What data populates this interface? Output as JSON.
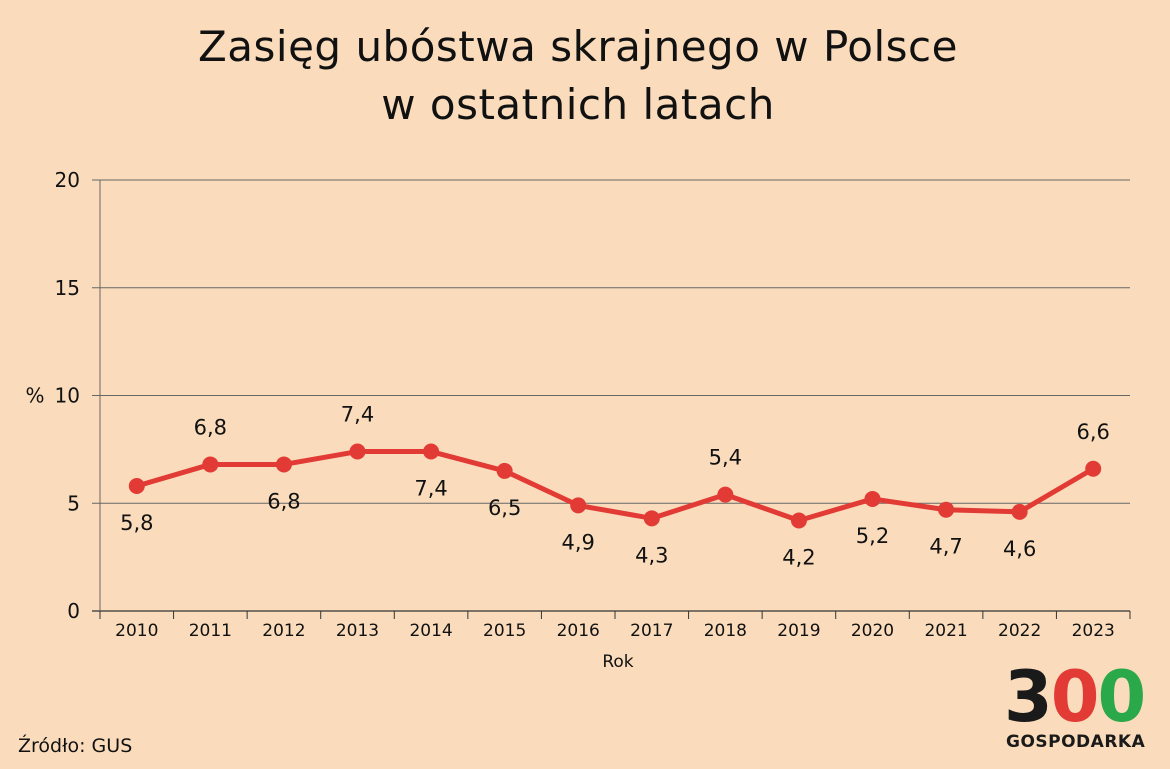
{
  "chart_data": {
    "type": "line",
    "title_lines": [
      "Zasięg ubóstwa skrajnego w Polsce",
      "w ostatnich latach"
    ],
    "xlabel": "Rok",
    "ylabel": "%",
    "categories": [
      "2010",
      "2011",
      "2012",
      "2013",
      "2014",
      "2015",
      "2016",
      "2017",
      "2018",
      "2019",
      "2020",
      "2021",
      "2022",
      "2023"
    ],
    "series": [
      {
        "values": [
          5.8,
          6.8,
          6.8,
          7.4,
          7.4,
          6.5,
          4.9,
          4.3,
          5.4,
          4.2,
          5.2,
          4.7,
          4.6,
          6.6
        ],
        "labels": [
          "5,8",
          "6,8",
          "6,8",
          "7,4",
          "7,4",
          "6,5",
          "4,9",
          "4,3",
          "5,4",
          "4,2",
          "5,2",
          "4,7",
          "4,6",
          "6,6"
        ],
        "label_positions": [
          "below",
          "above",
          "below",
          "above",
          "below",
          "below",
          "below",
          "below",
          "above",
          "below",
          "below",
          "below",
          "below",
          "above"
        ],
        "color": "#e23b35"
      }
    ],
    "yticks": [
      0,
      5,
      10,
      15,
      20
    ],
    "ylim": [
      0,
      20
    ],
    "grid": true,
    "background": "#fadcbc"
  },
  "source": "Źródło: GUS",
  "logo": {
    "digits": [
      "3",
      "0",
      "0"
    ],
    "digit_colors": [
      "#1a1a1a",
      "#e23b35",
      "#2aa84a"
    ],
    "subtitle": "GOSPODARKA"
  }
}
